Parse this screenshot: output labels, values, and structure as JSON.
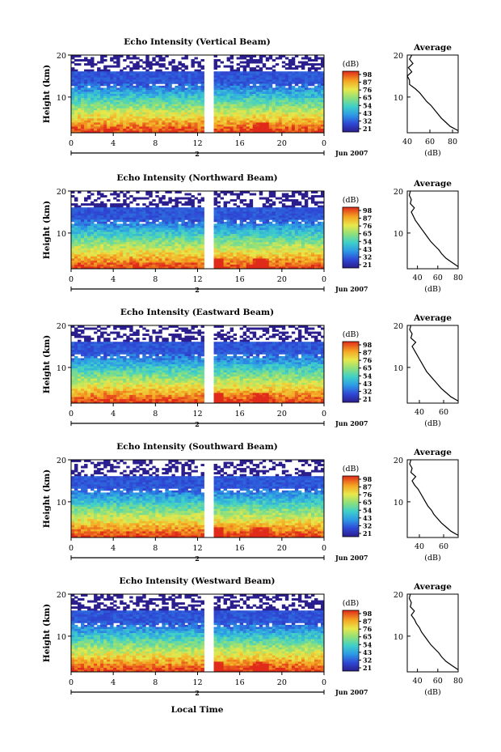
{
  "chart_data": [
    {
      "type": "heatmap",
      "title": "Echo Intensity (Vertical Beam)",
      "ylabel": "Height (km)",
      "xticks": [
        "0",
        "4",
        "8",
        "12",
        "16",
        "20",
        "0"
      ],
      "yticks": [
        "20",
        "10"
      ],
      "xlim": [
        0,
        24
      ],
      "ylim": [
        1.5,
        20
      ],
      "date_label": "Jun 2007",
      "day_label": "2",
      "colorbar": {
        "unit": "(dB)",
        "ticks": [
          "98",
          "87",
          "76",
          "65",
          "54",
          "43",
          "32",
          "21"
        ]
      },
      "average_profile": {
        "title": "Average",
        "xlabel": "(dB)",
        "xticks": [
          "40",
          "60",
          "80"
        ],
        "xlim": [
          40,
          85
        ],
        "yticks": [
          "20",
          "10"
        ],
        "heights": [
          2,
          3,
          4,
          5,
          6,
          7,
          8,
          9,
          10,
          11,
          12,
          13,
          14,
          15,
          16,
          17,
          18,
          19,
          20
        ],
        "values": [
          85,
          78,
          74,
          70,
          67,
          64,
          61,
          57,
          54,
          51,
          47,
          42,
          42,
          40,
          44,
          41,
          45,
          42,
          44
        ]
      }
    },
    {
      "type": "heatmap",
      "title": "Echo Intensity (Northward Beam)",
      "ylabel": "Height (km)",
      "xticks": [
        "0",
        "4",
        "8",
        "12",
        "16",
        "20",
        "0"
      ],
      "yticks": [
        "20",
        "10"
      ],
      "xlim": [
        0,
        24
      ],
      "ylim": [
        1.5,
        20
      ],
      "date_label": "Jun 2007",
      "day_label": "2",
      "colorbar": {
        "unit": "(dB)",
        "ticks": [
          "98",
          "87",
          "76",
          "65",
          "54",
          "43",
          "32",
          "21"
        ]
      },
      "average_profile": {
        "title": "Average",
        "xlabel": "(dB)",
        "xticks": [
          "40",
          "60",
          "80"
        ],
        "xlim": [
          30,
          80
        ],
        "yticks": [
          "20",
          "10"
        ],
        "heights": [
          2,
          3,
          4,
          5,
          6,
          7,
          8,
          9,
          10,
          11,
          12,
          13,
          14,
          15,
          16,
          17,
          18,
          19,
          20
        ],
        "values": [
          80,
          74,
          68,
          64,
          61,
          57,
          53,
          50,
          47,
          44,
          41,
          38,
          36,
          34,
          37,
          33,
          34,
          32,
          33
        ]
      }
    },
    {
      "type": "heatmap",
      "title": "Echo Intensity (Eastward Beam)",
      "ylabel": "Height (km)",
      "xticks": [
        "0",
        "4",
        "8",
        "12",
        "16",
        "20",
        "0"
      ],
      "yticks": [
        "20",
        "10"
      ],
      "xlim": [
        0,
        24
      ],
      "ylim": [
        1.5,
        20
      ],
      "date_label": "Jun 2007",
      "day_label": "2",
      "colorbar": {
        "unit": "(dB)",
        "ticks": [
          "98",
          "87",
          "76",
          "65",
          "54",
          "43",
          "32",
          "21"
        ]
      },
      "average_profile": {
        "title": "Average",
        "xlabel": "(dB)",
        "xticks": [
          "40",
          "60"
        ],
        "xlim": [
          30,
          72
        ],
        "yticks": [
          "20",
          "10"
        ],
        "heights": [
          2,
          3,
          4,
          5,
          6,
          7,
          8,
          9,
          10,
          11,
          12,
          13,
          14,
          15,
          16,
          17,
          18,
          19,
          20
        ],
        "values": [
          72,
          66,
          62,
          58,
          55,
          52,
          49,
          46,
          44,
          42,
          40,
          38,
          36,
          34,
          37,
          33,
          34,
          32,
          33
        ]
      }
    },
    {
      "type": "heatmap",
      "title": "Echo Intensity (Southward Beam)",
      "ylabel": "Height (km)",
      "xticks": [
        "0",
        "4",
        "8",
        "12",
        "16",
        "20",
        "0"
      ],
      "yticks": [
        "20",
        "10"
      ],
      "xlim": [
        0,
        24
      ],
      "ylim": [
        1.5,
        20
      ],
      "date_label": "Jun 2007",
      "day_label": "2",
      "colorbar": {
        "unit": "(dB)",
        "ticks": [
          "98",
          "87",
          "76",
          "65",
          "54",
          "43",
          "32",
          "21"
        ]
      },
      "average_profile": {
        "title": "Average",
        "xlabel": "(dB)",
        "xticks": [
          "40",
          "60"
        ],
        "xlim": [
          30,
          72
        ],
        "yticks": [
          "20",
          "10"
        ],
        "heights": [
          2,
          3,
          4,
          5,
          6,
          7,
          8,
          9,
          10,
          11,
          12,
          13,
          14,
          15,
          16,
          17,
          18,
          19,
          20
        ],
        "values": [
          72,
          66,
          62,
          58,
          55,
          52,
          50,
          47,
          45,
          43,
          41,
          39,
          36,
          34,
          37,
          33,
          34,
          32,
          33
        ]
      }
    },
    {
      "type": "heatmap",
      "title": "Echo Intensity (Westward Beam)",
      "ylabel": "Height (km)",
      "xticks": [
        "0",
        "4",
        "8",
        "12",
        "16",
        "20",
        "0"
      ],
      "yticks": [
        "20",
        "10"
      ],
      "xlim": [
        0,
        24
      ],
      "ylim": [
        1.5,
        20
      ],
      "date_label": "Jun 2007",
      "day_label": "2",
      "colorbar": {
        "unit": "(dB)",
        "ticks": [
          "98",
          "87",
          "76",
          "65",
          "54",
          "43",
          "32",
          "21"
        ]
      },
      "average_profile": {
        "title": "Average",
        "xlabel": "(dB)",
        "xticks": [
          "40",
          "60",
          "80"
        ],
        "xlim": [
          30,
          80
        ],
        "yticks": [
          "20",
          "10"
        ],
        "heights": [
          2,
          3,
          4,
          5,
          6,
          7,
          8,
          9,
          10,
          11,
          12,
          13,
          14,
          15,
          16,
          17,
          18,
          19,
          20
        ],
        "values": [
          80,
          74,
          68,
          64,
          61,
          57,
          53,
          50,
          47,
          44,
          42,
          39,
          37,
          34,
          37,
          33,
          34,
          32,
          33
        ]
      }
    }
  ],
  "xlabel": "Local Time"
}
